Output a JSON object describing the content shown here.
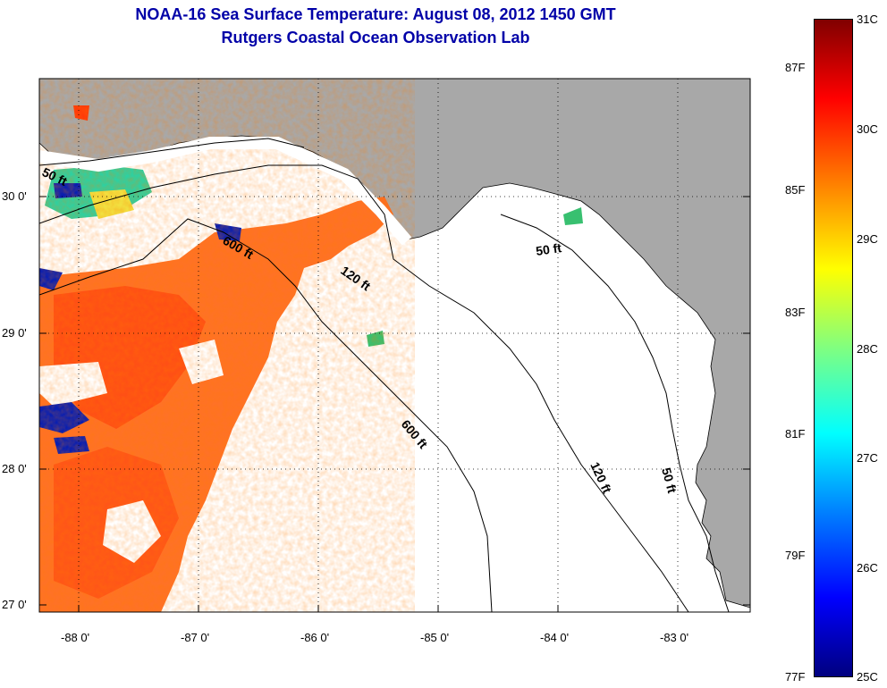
{
  "title": {
    "line1": "NOAA-16 Sea Surface Temperature:  August 08, 2012 1450 GMT",
    "line2": "Rutgers Coastal Ocean Observation Lab"
  },
  "lat_labels": [
    "30 0'",
    "29 0'",
    "28 0'",
    "27 0'"
  ],
  "lon_labels": [
    "-88 0'",
    "-87 0'",
    "-86 0'",
    "-85 0'",
    "-84 0'",
    "-83 0'"
  ],
  "contour_labels": {
    "c50w": "50 ft",
    "c600a": "600 ft",
    "c120a": "120 ft",
    "c50e": "50 ft",
    "c600b": "600 ft",
    "c120b": "120 ft",
    "c50s": "50 ft"
  },
  "colorbar": {
    "celsius_labels": [
      "31C",
      "30C",
      "29C",
      "28C",
      "27C",
      "26C",
      "25C"
    ],
    "fahrenheit_labels": [
      "87F",
      "85F",
      "83F",
      "81F",
      "79F",
      "77F"
    ]
  },
  "colors": {
    "land": "#a8a8a8",
    "title": "#0000a8",
    "sst_warm": "#ff6a1a",
    "sst_cool": "#0a1fb0"
  }
}
